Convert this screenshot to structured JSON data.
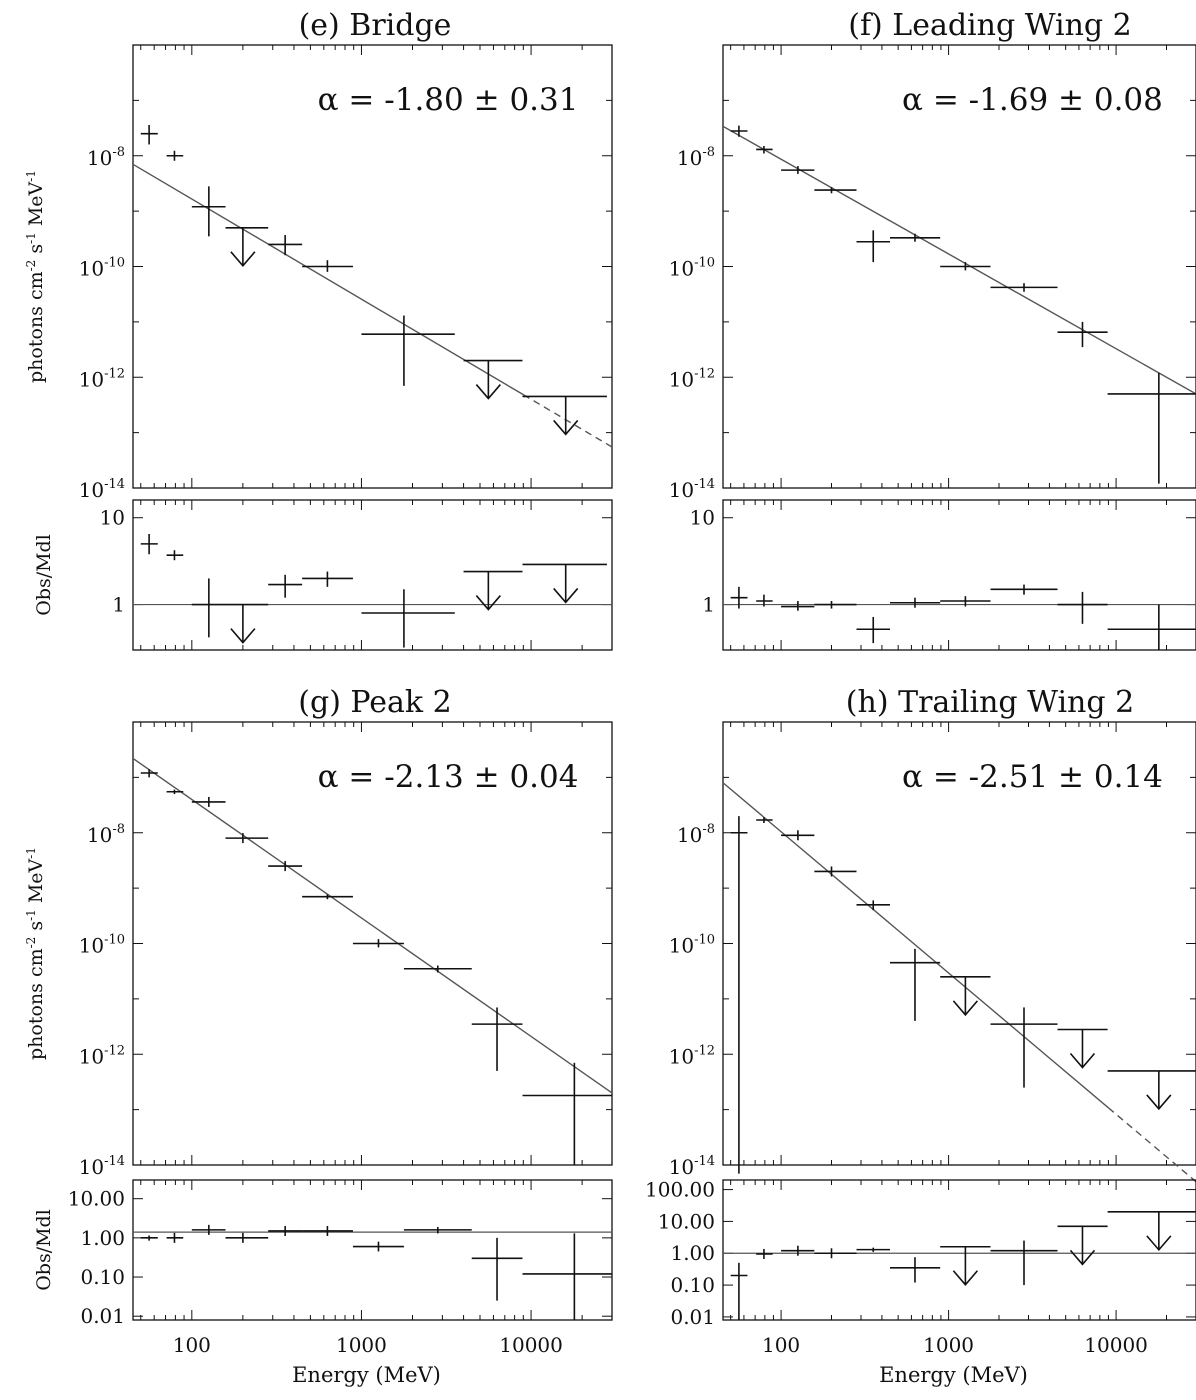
{
  "x_tick_labels": [
    "100",
    "1000",
    "10000"
  ],
  "x_axis_label": "Energy (MeV)",
  "y_axis_label": "photons cm-2 s-1 MeV-1",
  "y_axis_label_html": "photons cm<tspan baseline-shift='super' font-size='12'>-2</tspan> s<tspan baseline-shift='super' font-size='12'>-1</tspan> MeV<tspan baseline-shift='super' font-size='12'>-1</tspan>",
  "ratio_axis_label": "Obs/Mdl",
  "colors": {
    "ink": "#111111",
    "model_line": "#555555"
  },
  "chart_data": [
    {
      "id": "e",
      "type": "scatter",
      "title": "(e)  Bridge",
      "annotation": "α = -1.80 ± 0.31",
      "xscale": "log",
      "yscale": "log",
      "xlim": [
        45,
        30000
      ],
      "ylim": [
        1e-14,
        1e-06
      ],
      "ytick_exponents": [
        -8,
        -10,
        -12,
        -14
      ],
      "model": {
        "x1": 45,
        "y1": 7e-09,
        "x_solid_end": 9000,
        "x2": 30000,
        "y2": 5.5e-14
      },
      "points": [
        {
          "x": 56,
          "y": 2.5e-08,
          "xlo": 50,
          "xhi": 63,
          "ylo": 1.6e-08,
          "yhi": 3.6e-08,
          "ul": false
        },
        {
          "x": 79,
          "y": 1e-08,
          "xlo": 71,
          "xhi": 89,
          "ylo": null,
          "yhi": null,
          "ul": false
        },
        {
          "x": 126,
          "y": 1.2e-09,
          "xlo": 100,
          "xhi": 158,
          "ylo": 3.5e-10,
          "yhi": 2.8e-09,
          "ul": false
        },
        {
          "x": 200,
          "y": 5e-10,
          "xlo": 158,
          "xhi": 282,
          "ylo": null,
          "yhi": null,
          "ul": true
        },
        {
          "x": 355,
          "y": 2.5e-10,
          "xlo": 282,
          "xhi": 447,
          "ylo": 1.6e-10,
          "yhi": 3.7e-10,
          "ul": false
        },
        {
          "x": 630,
          "y": 1e-10,
          "xlo": 447,
          "xhi": 891,
          "ylo": 8e-11,
          "yhi": 1.3e-10,
          "ul": false
        },
        {
          "x": 1780,
          "y": 6e-12,
          "xlo": 1000,
          "xhi": 3550,
          "ylo": 7e-13,
          "yhi": 1.3e-11,
          "ul": false
        },
        {
          "x": 5600,
          "y": 2e-12,
          "xlo": 4000,
          "xhi": 8900,
          "ylo": null,
          "yhi": null,
          "ul": true
        },
        {
          "x": 16000,
          "y": 4.5e-13,
          "xlo": 8900,
          "xhi": 28000,
          "ylo": null,
          "yhi": null,
          "ul": true
        }
      ],
      "ratio": {
        "ylabel": "Obs/Mdl",
        "yscale": "log",
        "ylim": [
          0.3,
          16
        ],
        "yticks": [
          10,
          1
        ],
        "ytick_labels": [
          "10",
          "1"
        ],
        "reference": 1,
        "points": [
          {
            "x": 56,
            "y": 5.0,
            "xlo": 50,
            "xhi": 63,
            "ylo": 3.8,
            "yhi": 6.5,
            "ul": false
          },
          {
            "x": 79,
            "y": 3.7,
            "xlo": 71,
            "xhi": 89,
            "ylo": null,
            "yhi": null,
            "ul": false
          },
          {
            "x": 126,
            "y": 1.0,
            "xlo": 100,
            "xhi": 158,
            "ylo": 0.42,
            "yhi": 2.0,
            "ul": false
          },
          {
            "x": 200,
            "y": 1.0,
            "xlo": 158,
            "xhi": 282,
            "ylo": null,
            "yhi": null,
            "ul": true
          },
          {
            "x": 355,
            "y": 1.7,
            "xlo": 282,
            "xhi": 447,
            "ylo": 1.2,
            "yhi": 2.2,
            "ul": false
          },
          {
            "x": 630,
            "y": 2.0,
            "xlo": 447,
            "xhi": 891,
            "ylo": 1.6,
            "yhi": 2.4,
            "ul": false
          },
          {
            "x": 1780,
            "y": 0.8,
            "xlo": 1000,
            "xhi": 3550,
            "ylo": 0.32,
            "yhi": 1.5,
            "ul": false
          },
          {
            "x": 5600,
            "y": 2.4,
            "xlo": 4000,
            "xhi": 8900,
            "ylo": null,
            "yhi": null,
            "ul": true
          },
          {
            "x": 16000,
            "y": 2.9,
            "xlo": 8900,
            "xhi": 28000,
            "ylo": null,
            "yhi": null,
            "ul": true
          }
        ]
      }
    },
    {
      "id": "f",
      "type": "scatter",
      "title": "(f)  Leading Wing 2",
      "annotation": "α = -1.69 ± 0.08",
      "xscale": "log",
      "yscale": "log",
      "xlim": [
        45,
        30000
      ],
      "ylim": [
        1e-14,
        1e-06
      ],
      "ytick_exponents": [
        -8,
        -10,
        -12,
        -14
      ],
      "model": {
        "x1": 45,
        "y1": 3.4e-08,
        "x_solid_end": 30000,
        "x2": 30000,
        "y2": 5e-13
      },
      "points": [
        {
          "x": 56,
          "y": 2.8e-08,
          "xlo": 50,
          "xhi": 63,
          "ylo": 2.2e-08,
          "yhi": 3.5e-08,
          "ul": false
        },
        {
          "x": 79,
          "y": 1.3e-08,
          "xlo": 71,
          "xhi": 89,
          "ylo": 1.1e-08,
          "yhi": 1.5e-08,
          "ul": false
        },
        {
          "x": 126,
          "y": 5.5e-09,
          "xlo": 100,
          "xhi": 158,
          "ylo": 4.7e-09,
          "yhi": 6.5e-09,
          "ul": false
        },
        {
          "x": 200,
          "y": 2.4e-09,
          "xlo": 158,
          "xhi": 282,
          "ylo": 2.1e-09,
          "yhi": 2.7e-09,
          "ul": false
        },
        {
          "x": 355,
          "y": 2.8e-10,
          "xlo": 282,
          "xhi": 447,
          "ylo": 1.2e-10,
          "yhi": 4.5e-10,
          "ul": false
        },
        {
          "x": 630,
          "y": 3.3e-10,
          "xlo": 447,
          "xhi": 891,
          "ylo": 2.8e-10,
          "yhi": 3.9e-10,
          "ul": false
        },
        {
          "x": 1260,
          "y": 1e-10,
          "xlo": 891,
          "xhi": 1780,
          "ylo": 8.5e-11,
          "yhi": 1.2e-10,
          "ul": false
        },
        {
          "x": 2820,
          "y": 4.2e-11,
          "xlo": 1780,
          "xhi": 4470,
          "ylo": 3.5e-11,
          "yhi": 5e-11,
          "ul": false
        },
        {
          "x": 6300,
          "y": 6.5e-12,
          "xlo": 4470,
          "xhi": 8900,
          "ylo": 3.5e-12,
          "yhi": 1e-11,
          "ul": false
        },
        {
          "x": 18000,
          "y": 5e-13,
          "xlo": 8900,
          "xhi": 30000,
          "ylo": 1.2e-14,
          "yhi": 1.2e-12,
          "ul": false
        }
      ],
      "ratio": {
        "ylabel": "Obs/Mdl",
        "yscale": "log",
        "ylim": [
          0.3,
          16
        ],
        "yticks": [
          10,
          1
        ],
        "ytick_labels": [
          "10",
          "1"
        ],
        "reference": 1,
        "points": [
          {
            "x": 56,
            "y": 1.2,
            "xlo": 50,
            "xhi": 63,
            "ylo": 0.9,
            "yhi": 1.6,
            "ul": false
          },
          {
            "x": 79,
            "y": 1.1,
            "xlo": 71,
            "xhi": 89,
            "ylo": 0.95,
            "yhi": 1.3,
            "ul": false
          },
          {
            "x": 126,
            "y": 0.95,
            "xlo": 100,
            "xhi": 158,
            "ylo": 0.85,
            "yhi": 1.1,
            "ul": false
          },
          {
            "x": 200,
            "y": 1.0,
            "xlo": 158,
            "xhi": 282,
            "ylo": 0.9,
            "yhi": 1.1,
            "ul": false
          },
          {
            "x": 355,
            "y": 0.52,
            "xlo": 282,
            "xhi": 447,
            "ylo": 0.36,
            "yhi": 0.72,
            "ul": false
          },
          {
            "x": 630,
            "y": 1.05,
            "xlo": 447,
            "xhi": 891,
            "ylo": 0.92,
            "yhi": 1.2,
            "ul": false
          },
          {
            "x": 1260,
            "y": 1.1,
            "xlo": 891,
            "xhi": 1780,
            "ylo": 0.95,
            "yhi": 1.25,
            "ul": false
          },
          {
            "x": 2820,
            "y": 1.5,
            "xlo": 1780,
            "xhi": 4470,
            "ylo": 1.3,
            "yhi": 1.7,
            "ul": false
          },
          {
            "x": 6300,
            "y": 1.0,
            "xlo": 4470,
            "xhi": 8900,
            "ylo": 0.6,
            "yhi": 1.4,
            "ul": false
          },
          {
            "x": 18000,
            "y": 0.52,
            "xlo": 8900,
            "xhi": 30000,
            "ylo": 0.3,
            "yhi": 1.0,
            "ul": false
          }
        ]
      }
    },
    {
      "id": "g",
      "type": "scatter",
      "title": "(g)  Peak 2",
      "annotation": "α = -2.13 ± 0.04",
      "xscale": "log",
      "yscale": "log",
      "xlim": [
        45,
        30000
      ],
      "ylim": [
        1e-14,
        1e-06
      ],
      "ytick_exponents": [
        -8,
        -10,
        -12,
        -14
      ],
      "model": {
        "x1": 45,
        "y1": 2.2e-07,
        "x_solid_end": 30000,
        "x2": 30000,
        "y2": 2e-13
      },
      "points": [
        {
          "x": 56,
          "y": 1.2e-07,
          "xlo": 50,
          "xhi": 63,
          "ylo": 1e-07,
          "yhi": 1.4e-07,
          "ul": false
        },
        {
          "x": 79,
          "y": 5.5e-08,
          "xlo": 71,
          "xhi": 89,
          "ylo": 5e-08,
          "yhi": 6e-08,
          "ul": false
        },
        {
          "x": 126,
          "y": 3.6e-08,
          "xlo": 100,
          "xhi": 158,
          "ylo": null,
          "yhi": null,
          "ul": false
        },
        {
          "x": 200,
          "y": 8e-09,
          "xlo": 158,
          "xhi": 282,
          "ylo": null,
          "yhi": null,
          "ul": false
        },
        {
          "x": 355,
          "y": 2.5e-09,
          "xlo": 282,
          "xhi": 447,
          "ylo": null,
          "yhi": null,
          "ul": false
        },
        {
          "x": 630,
          "y": 7e-10,
          "xlo": 447,
          "xhi": 891,
          "ylo": 6.3e-10,
          "yhi": 7.7e-10,
          "ul": false
        },
        {
          "x": 1260,
          "y": 1e-10,
          "xlo": 891,
          "xhi": 1780,
          "ylo": 8.5e-11,
          "yhi": 1.2e-10,
          "ul": false
        },
        {
          "x": 2820,
          "y": 3.5e-11,
          "xlo": 1780,
          "xhi": 4470,
          "ylo": 3e-11,
          "yhi": 4e-11,
          "ul": false
        },
        {
          "x": 6300,
          "y": 3.5e-12,
          "xlo": 4470,
          "xhi": 8900,
          "ylo": 5e-13,
          "yhi": 7e-12,
          "ul": false
        },
        {
          "x": 18000,
          "y": 1.8e-13,
          "xlo": 8900,
          "xhi": 30000,
          "ylo": 1e-14,
          "yhi": 7e-13,
          "ul": false
        }
      ],
      "ratio": {
        "ylabel": "Obs/Mdl",
        "yscale": "log",
        "ylim": [
          0.008,
          30
        ],
        "yticks": [
          10,
          1,
          0.1,
          0.01
        ],
        "ytick_labels": [
          "10.00",
          "1.00",
          "0.10",
          "0.01"
        ],
        "reference": 1.4,
        "points": [
          {
            "x": 56,
            "y": 1.0,
            "xlo": 50,
            "xhi": 63,
            "ylo": 0.85,
            "yhi": 1.15,
            "ul": false
          },
          {
            "x": 79,
            "y": 1.0,
            "xlo": 71,
            "xhi": 89,
            "ylo": null,
            "yhi": null,
            "ul": false
          },
          {
            "x": 126,
            "y": 1.6,
            "xlo": 100,
            "xhi": 158,
            "ylo": null,
            "yhi": null,
            "ul": false
          },
          {
            "x": 200,
            "y": 1.0,
            "xlo": 158,
            "xhi": 282,
            "ylo": null,
            "yhi": null,
            "ul": false
          },
          {
            "x": 355,
            "y": 1.5,
            "xlo": 282,
            "xhi": 447,
            "ylo": null,
            "yhi": null,
            "ul": false
          },
          {
            "x": 630,
            "y": 1.5,
            "xlo": 447,
            "xhi": 891,
            "ylo": null,
            "yhi": null,
            "ul": false
          },
          {
            "x": 1260,
            "y": 0.6,
            "xlo": 891,
            "xhi": 1780,
            "ylo": 0.45,
            "yhi": 0.8,
            "ul": false
          },
          {
            "x": 2820,
            "y": 1.6,
            "xlo": 1780,
            "xhi": 4470,
            "ylo": 1.3,
            "yhi": 1.9,
            "ul": false
          },
          {
            "x": 6300,
            "y": 0.3,
            "xlo": 4470,
            "xhi": 8900,
            "ylo": 0.025,
            "yhi": 1.0,
            "ul": false
          },
          {
            "x": 18000,
            "y": 0.12,
            "xlo": 8900,
            "xhi": 30000,
            "ylo": 0.008,
            "yhi": 1.3,
            "ul": false
          }
        ]
      }
    },
    {
      "id": "h",
      "type": "scatter",
      "title": "(h)  Trailing Wing 2",
      "annotation": "α = -2.51 ± 0.14",
      "xscale": "log",
      "yscale": "log",
      "xlim": [
        45,
        30000
      ],
      "ylim": [
        1e-14,
        1e-06
      ],
      "ytick_exponents": [
        -8,
        -10,
        -12,
        -14
      ],
      "model": {
        "x1": 45,
        "y1": 8e-08,
        "x_solid_end": 9000,
        "x2": 30000,
        "y2": 5e-15
      },
      "points": [
        {
          "x": 56,
          "y": 1e-08,
          "xlo": 50,
          "xhi": 63,
          "ylo": 7e-15,
          "yhi": 2e-08,
          "ul": false
        },
        {
          "x": 79,
          "y": 1.7e-08,
          "xlo": 71,
          "xhi": 89,
          "ylo": 1.5e-08,
          "yhi": 1.9e-08,
          "ul": false
        },
        {
          "x": 126,
          "y": 9e-09,
          "xlo": 100,
          "xhi": 158,
          "ylo": null,
          "yhi": null,
          "ul": false
        },
        {
          "x": 200,
          "y": 2e-09,
          "xlo": 158,
          "xhi": 282,
          "ylo": null,
          "yhi": null,
          "ul": false
        },
        {
          "x": 355,
          "y": 5e-10,
          "xlo": 282,
          "xhi": 447,
          "ylo": 4e-10,
          "yhi": 6e-10,
          "ul": false
        },
        {
          "x": 630,
          "y": 4.5e-11,
          "xlo": 447,
          "xhi": 891,
          "ylo": 4e-12,
          "yhi": 8e-11,
          "ul": false
        },
        {
          "x": 1260,
          "y": 2.5e-11,
          "xlo": 891,
          "xhi": 1780,
          "ylo": null,
          "yhi": null,
          "ul": true
        },
        {
          "x": 2820,
          "y": 3.5e-12,
          "xlo": 1780,
          "xhi": 4470,
          "ylo": 2.5e-13,
          "yhi": 7e-12,
          "ul": false
        },
        {
          "x": 6300,
          "y": 2.8e-12,
          "xlo": 4470,
          "xhi": 8900,
          "ylo": null,
          "yhi": null,
          "ul": true
        },
        {
          "x": 18000,
          "y": 5e-13,
          "xlo": 8900,
          "xhi": 30000,
          "ylo": null,
          "yhi": null,
          "ul": true
        }
      ],
      "ratio": {
        "ylabel": "Obs/Mdl",
        "yscale": "log",
        "ylim": [
          0.008,
          200
        ],
        "yticks": [
          100,
          10,
          1,
          0.1,
          0.01
        ],
        "ytick_labels": [
          "100.00",
          "10.00",
          "1.00",
          "0.10",
          "0.01"
        ],
        "reference": 1,
        "points": [
          {
            "x": 56,
            "y": 0.2,
            "xlo": 50,
            "xhi": 63,
            "ylo": 0.008,
            "yhi": 0.5,
            "ul": false
          },
          {
            "x": 79,
            "y": 0.95,
            "xlo": 71,
            "xhi": 89,
            "ylo": null,
            "yhi": null,
            "ul": false
          },
          {
            "x": 126,
            "y": 1.2,
            "xlo": 100,
            "xhi": 158,
            "ylo": null,
            "yhi": null,
            "ul": false
          },
          {
            "x": 200,
            "y": 1.0,
            "xlo": 158,
            "xhi": 282,
            "ylo": null,
            "yhi": null,
            "ul": false
          },
          {
            "x": 355,
            "y": 1.3,
            "xlo": 282,
            "xhi": 447,
            "ylo": 1.1,
            "yhi": 1.5,
            "ul": false
          },
          {
            "x": 630,
            "y": 0.35,
            "xlo": 447,
            "xhi": 891,
            "ylo": 0.12,
            "yhi": 0.75,
            "ul": false
          },
          {
            "x": 1260,
            "y": 1.6,
            "xlo": 891,
            "xhi": 1780,
            "ylo": null,
            "yhi": null,
            "ul": true
          },
          {
            "x": 2820,
            "y": 1.2,
            "xlo": 1780,
            "xhi": 4470,
            "ylo": 0.1,
            "yhi": 2.5,
            "ul": false
          },
          {
            "x": 6300,
            "y": 7.0,
            "xlo": 4470,
            "xhi": 8900,
            "ylo": null,
            "yhi": null,
            "ul": true
          },
          {
            "x": 18000,
            "y": 20.0,
            "xlo": 8900,
            "xhi": 30000,
            "ylo": null,
            "yhi": null,
            "ul": true
          }
        ]
      }
    }
  ]
}
